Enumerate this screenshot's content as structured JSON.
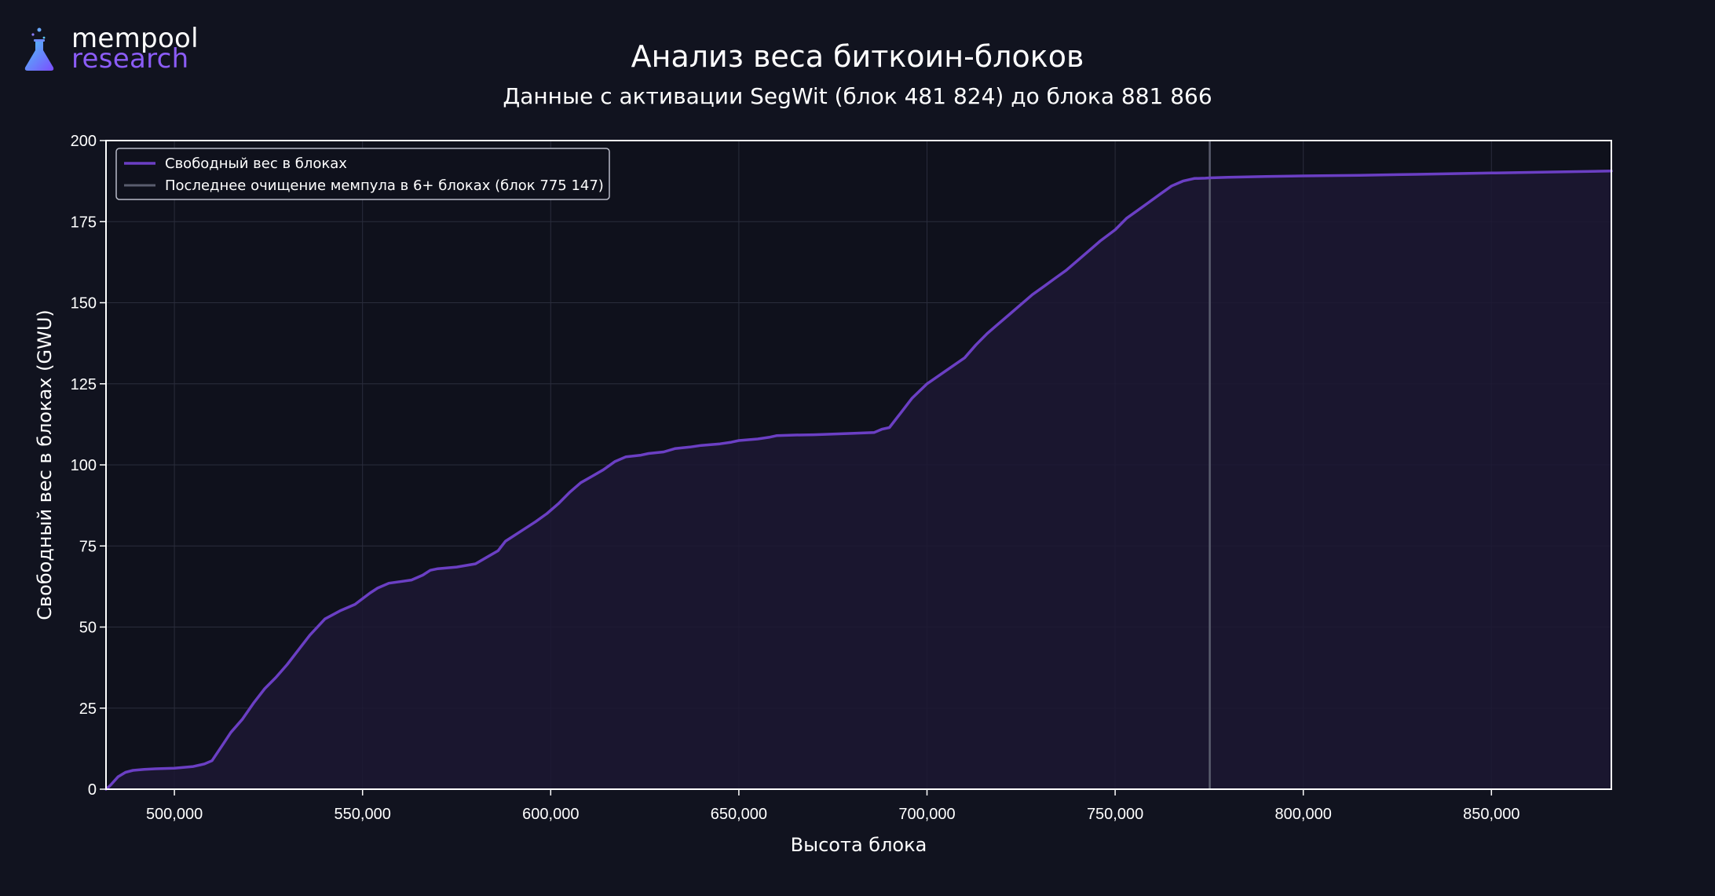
{
  "logo": {
    "line1": "mempool",
    "line2": "research"
  },
  "colors": {
    "background": "#11131f",
    "plot_background": "#0f111c",
    "series": "#6b3fc4",
    "fill": "#1c1733",
    "vline": "#5a5d6e",
    "grid": "#2a2d3c"
  },
  "chart_data": {
    "type": "area",
    "title": "Анализ веса биткоин-блоков",
    "subtitle": "Данные с активации SegWit (блок 481 824) до блока 881 866",
    "xlabel": "Высота блока",
    "ylabel": "Свободный вес в блоках (GWU)",
    "xlim": [
      481824,
      881866
    ],
    "ylim": [
      0,
      200
    ],
    "xticks": [
      500000,
      550000,
      600000,
      650000,
      700000,
      750000,
      800000,
      850000
    ],
    "xtick_labels": [
      "500,000",
      "550,000",
      "600,000",
      "650,000",
      "700,000",
      "750,000",
      "800,000",
      "850,000"
    ],
    "yticks": [
      0,
      25,
      50,
      75,
      100,
      125,
      150,
      175,
      200
    ],
    "ytick_labels": [
      "0",
      "25",
      "50",
      "75",
      "100",
      "125",
      "150",
      "175",
      "200"
    ],
    "grid": true,
    "legend_position": "top-left",
    "series": [
      {
        "name": "Свободный вес в блоках",
        "x": [
          481824,
          483000,
          485000,
          487000,
          489000,
          492000,
          495000,
          500000,
          505000,
          508000,
          510000,
          513000,
          515000,
          518000,
          521000,
          524000,
          527000,
          530000,
          533000,
          536000,
          540000,
          544000,
          548000,
          552000,
          554000,
          557000,
          560000,
          563000,
          566000,
          568000,
          570000,
          575000,
          580000,
          583000,
          586000,
          588000,
          592000,
          596000,
          599000,
          602000,
          605000,
          608000,
          611000,
          614000,
          617000,
          620000,
          624000,
          626000,
          630000,
          633000,
          637000,
          640000,
          645000,
          648000,
          650000,
          655000,
          658000,
          660000,
          665000,
          670000,
          675000,
          680000,
          686000,
          688000,
          690000,
          693000,
          696000,
          700000,
          705000,
          710000,
          713000,
          716000,
          719000,
          722000,
          725000,
          728000,
          731000,
          734000,
          737000,
          740000,
          743000,
          746000,
          750000,
          753000,
          756000,
          759000,
          762000,
          765000,
          768000,
          771000,
          774000,
          775147,
          780000,
          790000,
          800000,
          815000,
          830000,
          850000,
          865000,
          881866
        ],
        "y": [
          0,
          1.2,
          3.8,
          5.2,
          5.8,
          6.1,
          6.3,
          6.5,
          7,
          7.8,
          8.8,
          14,
          17.5,
          21.5,
          26.5,
          31,
          34.5,
          38.5,
          43,
          47.5,
          52.5,
          55,
          57,
          60.5,
          62,
          63.5,
          64,
          64.5,
          66,
          67.5,
          68,
          68.5,
          69.5,
          71.5,
          73.5,
          76.5,
          79.5,
          82.5,
          85,
          88,
          91.5,
          94.5,
          96.5,
          98.5,
          101,
          102.5,
          103,
          103.5,
          104,
          105,
          105.5,
          106,
          106.5,
          107,
          107.5,
          108,
          108.5,
          109,
          109.2,
          109.3,
          109.5,
          109.7,
          110,
          111,
          111.5,
          116,
          120.5,
          125,
          129,
          133,
          137,
          140.5,
          143.5,
          146.5,
          149.5,
          152.5,
          155,
          157.5,
          160,
          163,
          166,
          169,
          172.5,
          176,
          178.5,
          181,
          183.5,
          186,
          187.5,
          188.3,
          188.4,
          188.5,
          188.7,
          188.9,
          189.1,
          189.3,
          189.6,
          190,
          190.3,
          190.6
        ]
      }
    ],
    "annotations": [
      {
        "type": "vline",
        "x": 775147,
        "label": "Последнее очищение мемпула в 6+ блоках (блок 775 147)"
      }
    ]
  }
}
